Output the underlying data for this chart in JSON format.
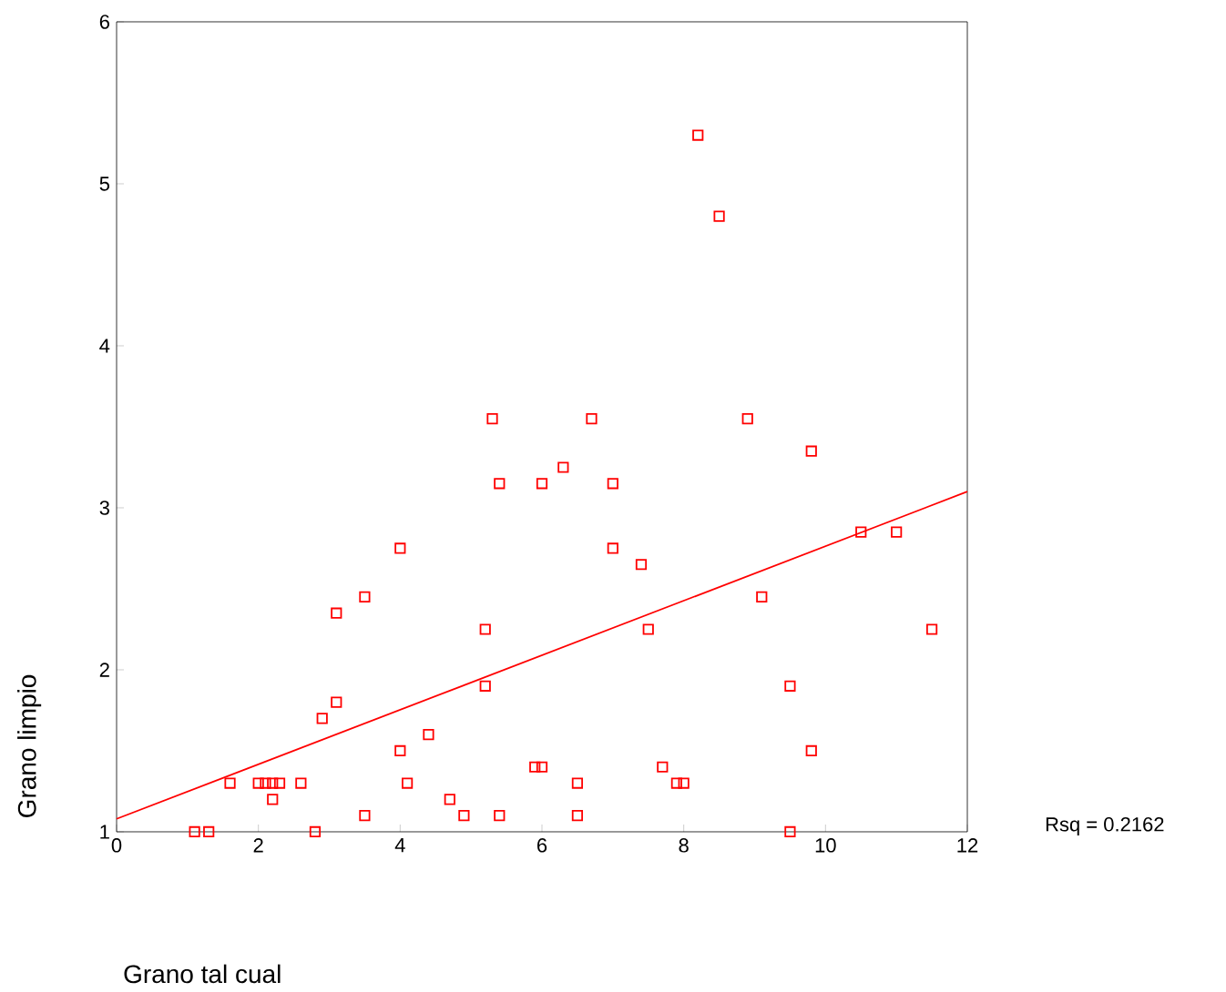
{
  "chart_data": {
    "type": "scatter",
    "xlabel": "Grano tal cual",
    "ylabel": "Grano limpio",
    "xlim": [
      0,
      12
    ],
    "ylim": [
      1,
      6
    ],
    "xticks": [
      0,
      2,
      4,
      6,
      8,
      10,
      12
    ],
    "yticks": [
      1,
      2,
      3,
      4,
      5,
      6
    ],
    "series": [
      {
        "marker": "square",
        "color": "#ff0000",
        "x": [
          1.1,
          1.3,
          1.6,
          2.0,
          2.1,
          2.2,
          2.3,
          2.2,
          2.6,
          2.8,
          2.9,
          3.1,
          3.1,
          3.5,
          3.5,
          4.0,
          4.0,
          4.1,
          4.4,
          4.7,
          4.9,
          5.2,
          5.2,
          5.3,
          5.4,
          5.4,
          5.9,
          6.0,
          6.0,
          6.3,
          6.5,
          6.5,
          6.7,
          7.0,
          7.0,
          7.4,
          7.5,
          7.7,
          7.9,
          8.0,
          8.2,
          8.5,
          8.9,
          9.1,
          9.5,
          9.5,
          9.8,
          9.8,
          10.5,
          11.0,
          11.5
        ],
        "values": [
          1.0,
          1.0,
          1.3,
          1.3,
          1.3,
          1.3,
          1.3,
          1.2,
          1.3,
          1.0,
          1.7,
          1.8,
          2.35,
          2.45,
          1.1,
          1.5,
          2.75,
          1.3,
          1.6,
          1.2,
          1.1,
          2.25,
          1.9,
          3.55,
          3.15,
          1.1,
          1.4,
          1.4,
          3.15,
          3.25,
          1.1,
          1.3,
          3.55,
          3.15,
          2.75,
          2.65,
          2.25,
          1.4,
          1.3,
          1.3,
          5.3,
          4.8,
          3.55,
          2.45,
          1.9,
          1.0,
          3.35,
          1.5,
          2.85,
          2.85,
          2.25
        ]
      },
      {
        "type": "line",
        "marker": "none",
        "color": "#ff0000",
        "x": [
          0,
          12
        ],
        "values": [
          1.08,
          3.1
        ]
      }
    ],
    "annotations": [
      "Rsq = 0.2162"
    ]
  }
}
